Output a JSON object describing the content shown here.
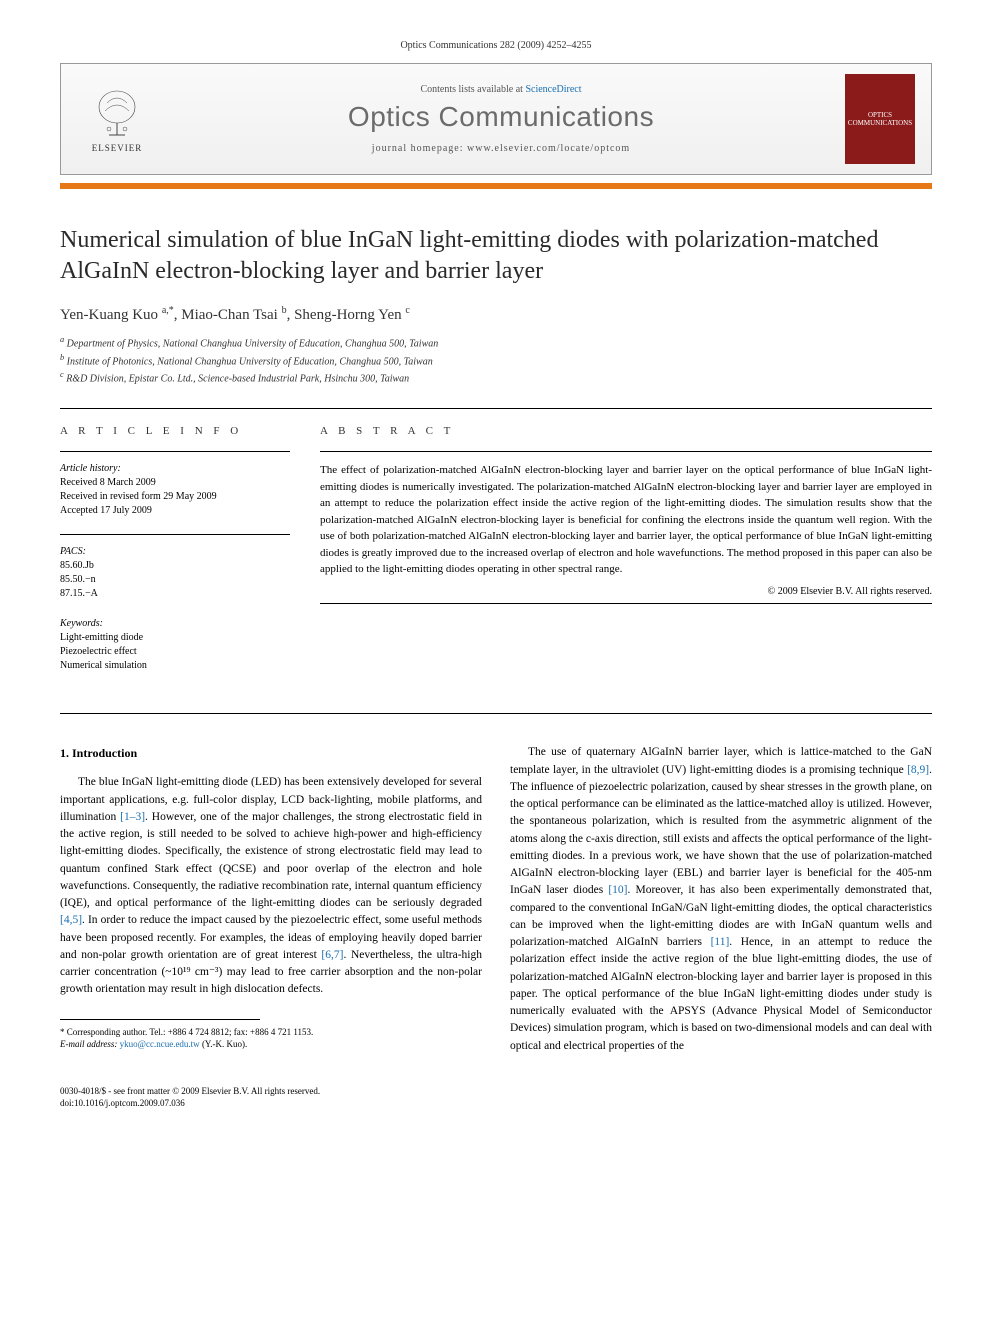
{
  "header_citation": "Optics Communications 282 (2009) 4252–4255",
  "banner": {
    "publisher": "ELSEVIER",
    "availability_prefix": "Contents lists available at ",
    "availability_link": "ScienceDirect",
    "journal_name": "Optics Communications",
    "homepage_label": "journal homepage: www.elsevier.com/locate/optcom",
    "cover_text": "OPTICS COMMUNICATIONS"
  },
  "colors": {
    "accent_bar": "#e67817",
    "link": "#1a6fb0",
    "cover": "#8b1a1a",
    "journal_name": "#6b6b6b"
  },
  "title": "Numerical simulation of blue InGaN light-emitting diodes with polarization-matched AlGaInN electron-blocking layer and barrier layer",
  "authors_html": "Yen-Kuang Kuo <sup>a,*</sup>, Miao-Chan Tsai <sup>b</sup>, Sheng-Horng Yen <sup>c</sup>",
  "affiliations": [
    "a Department of Physics, National Changhua University of Education, Changhua 500, Taiwan",
    "b Institute of Photonics, National Changhua University of Education, Changhua 500, Taiwan",
    "c R&D Division, Epistar Co. Ltd., Science-based Industrial Park, Hsinchu 300, Taiwan"
  ],
  "article_info": {
    "heading": "A R T I C L E   I N F O",
    "history_label": "Article history:",
    "history": [
      "Received 8 March 2009",
      "Received in revised form 29 May 2009",
      "Accepted 17 July 2009"
    ],
    "pacs_label": "PACS:",
    "pacs": [
      "85.60.Jb",
      "85.50.−n",
      "87.15.−A"
    ],
    "keywords_label": "Keywords:",
    "keywords": [
      "Light-emitting diode",
      "Piezoelectric effect",
      "Numerical simulation"
    ]
  },
  "abstract": {
    "heading": "A B S T R A C T",
    "text": "The effect of polarization-matched AlGaInN electron-blocking layer and barrier layer on the optical performance of blue InGaN light-emitting diodes is numerically investigated. The polarization-matched AlGaInN electron-blocking layer and barrier layer are employed in an attempt to reduce the polarization effect inside the active region of the light-emitting diodes. The simulation results show that the polarization-matched AlGaInN electron-blocking layer is beneficial for confining the electrons inside the quantum well region. With the use of both polarization-matched AlGaInN electron-blocking layer and barrier layer, the optical performance of blue InGaN light-emitting diodes is greatly improved due to the increased overlap of electron and hole wavefunctions. The method proposed in this paper can also be applied to the light-emitting diodes operating in other spectral range.",
    "copyright": "© 2009 Elsevier B.V. All rights reserved."
  },
  "section1": {
    "heading": "1. Introduction",
    "para1_pre": "The blue InGaN light-emitting diode (LED) has been extensively developed for several important applications, e.g. full-color display, LCD back-lighting, mobile platforms, and illumination ",
    "ref1": "[1–3]",
    "para1_mid": ". However, one of the major challenges, the strong electrostatic field in the active region, is still needed to be solved to achieve high-power and high-efficiency light-emitting diodes. Specifically, the existence of strong electrostatic field may lead to quantum confined Stark effect (QCSE) and poor overlap of the electron and hole wavefunctions. Consequently, the radiative recombination rate, internal quantum efficiency (IQE), and optical performance of the light-emitting diodes can be seriously degraded ",
    "ref2": "[4,5]",
    "para1_mid2": ". In order to reduce the impact caused by the piezoelectric effect, some useful methods have been proposed recently. For examples, the ideas of employing heavily doped barrier and non-polar growth orientation are of great interest ",
    "ref3": "[6,7]",
    "para1_end": ". Nevertheless, the ultra-high carrier concentration (~10¹⁹ cm⁻³) may lead to free carrier absorption and the non-polar growth orientation may result in high dislocation defects.",
    "para2_pre": "The use of quaternary AlGaInN barrier layer, which is lattice-matched to the GaN template layer, in the ultraviolet (UV) light-emitting diodes is a promising technique ",
    "ref4": "[8,9]",
    "para2_mid": ". The influence of piezoelectric polarization, caused by shear stresses in the growth plane, on the optical performance can be eliminated as the lattice-matched alloy is utilized. However, the spontaneous polarization, which is resulted from the asymmetric alignment of the atoms along the c-axis direction, still exists and affects the optical performance of the light-emitting diodes. In a previous work, we have shown that the use of polarization-matched AlGaInN electron-blocking layer (EBL) and barrier layer is beneficial for the 405-nm InGaN laser diodes ",
    "ref5": "[10]",
    "para2_mid2": ". Moreover, it has also been experimentally demonstrated that, compared to the conventional InGaN/GaN light-emitting diodes, the optical characteristics can be improved when the light-emitting diodes are with InGaN quantum wells and polarization-matched AlGaInN barriers ",
    "ref6": "[11]",
    "para2_end": ". Hence, in an attempt to reduce the polarization effect inside the active region of the blue light-emitting diodes, the use of polarization-matched AlGaInN electron-blocking layer and barrier layer is proposed in this paper. The optical performance of the blue InGaN light-emitting diodes under study is numerically evaluated with the APSYS (Advance Physical Model of Semiconductor Devices) simulation program, which is based on two-dimensional models and can deal with optical and electrical properties of the"
  },
  "footnote": {
    "corr": "* Corresponding author. Tel.: +886 4 724 8812; fax: +886 4 721 1153.",
    "email_label": "E-mail address: ",
    "email": "ykuo@cc.ncue.edu.tw",
    "email_suffix": " (Y.-K. Kuo)."
  },
  "bottom": {
    "line1": "0030-4018/$ - see front matter © 2009 Elsevier B.V. All rights reserved.",
    "line2": "doi:10.1016/j.optcom.2009.07.036"
  }
}
